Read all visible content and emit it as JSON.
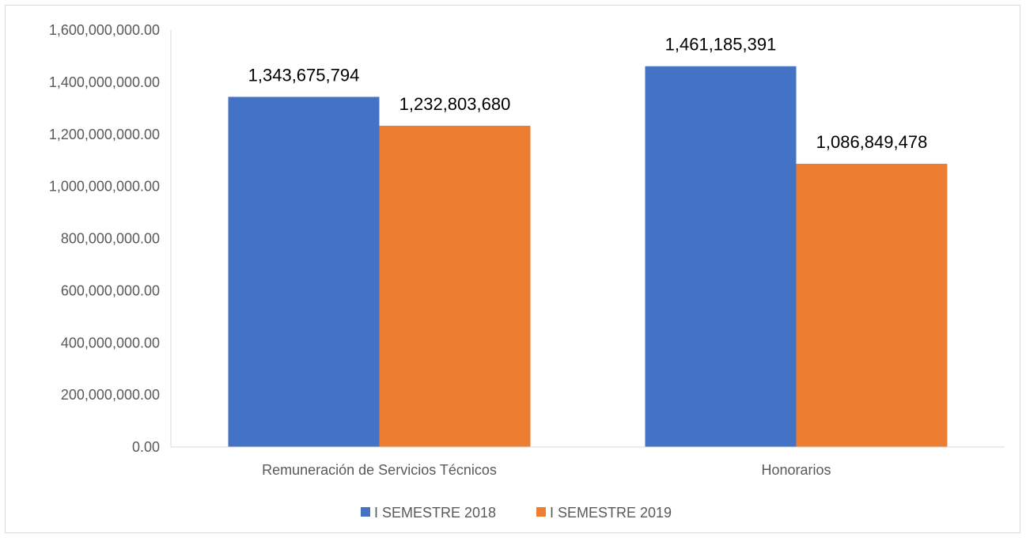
{
  "chart_data": {
    "type": "bar",
    "title": "",
    "xlabel": "",
    "ylabel": "",
    "categories": [
      "Remuneración de Servicios Técnicos",
      "Honorarios"
    ],
    "series": [
      {
        "name": "I SEMESTRE 2018",
        "color": "#4472c4",
        "values": [
          1343675794,
          1461185391
        ],
        "labels": [
          "1,343,675,794",
          "1,461,185,391"
        ]
      },
      {
        "name": "I SEMESTRE 2019",
        "color": "#ed7d31",
        "values": [
          1232803680,
          1086849478
        ],
        "labels": [
          "1,232,803,680",
          "1,086,849,478"
        ]
      }
    ],
    "ylim": [
      0,
      1600000000
    ],
    "yticks": [
      0,
      200000000,
      400000000,
      600000000,
      800000000,
      1000000000,
      1200000000,
      1400000000,
      1600000000
    ],
    "ytick_labels": [
      "0.00",
      "200,000,000.00",
      "400,000,000.00",
      "600,000,000.00",
      "800,000,000.00",
      "1,000,000,000.00",
      "1,200,000,000.00",
      "1,400,000,000.00",
      "1,600,000,000.00"
    ],
    "grid": false,
    "legend_position": "bottom"
  }
}
